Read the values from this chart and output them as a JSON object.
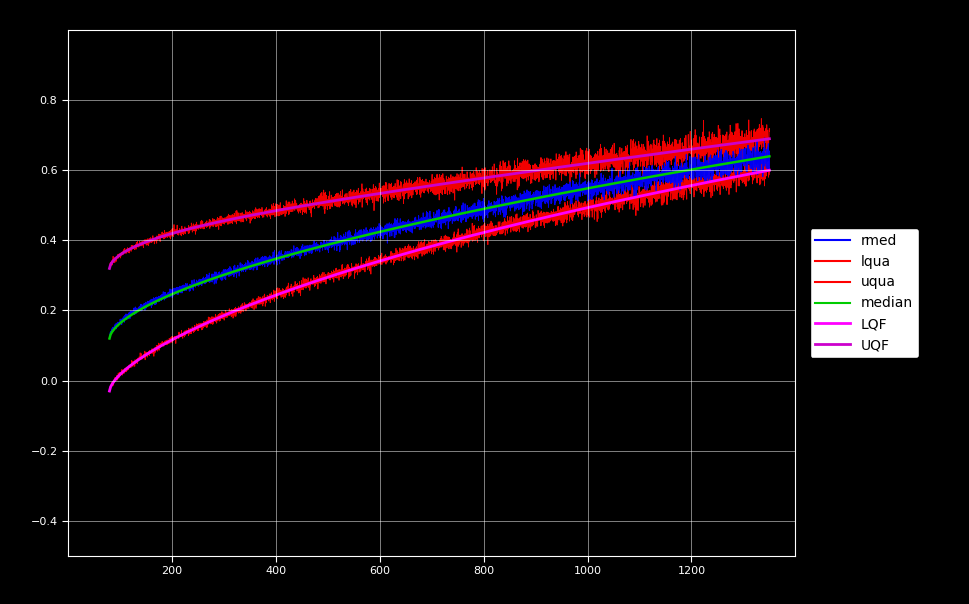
{
  "background_color": "#000000",
  "plot_bg_color": "#000000",
  "text_color": "#ffffff",
  "grid_color": "#808080",
  "legend_bg": "#ffffff",
  "legend_text_color": "#000000",
  "xlim": [
    0,
    1400
  ],
  "ylim": [
    -0.5,
    1.0
  ],
  "x_ticks": [
    200,
    400,
    600,
    800,
    1000,
    1200
  ],
  "y_ticks": [
    -0.4,
    -0.2,
    0.0,
    0.2,
    0.4,
    0.6,
    0.8
  ],
  "legend_entries": [
    "rmed",
    "lqua",
    "uqua",
    "median",
    "LQF",
    "UQF"
  ],
  "legend_colors": [
    "#0000ff",
    "#ff0000",
    "#ff0000",
    "#00aa00",
    "#ff00ff",
    "#ff00ff"
  ]
}
